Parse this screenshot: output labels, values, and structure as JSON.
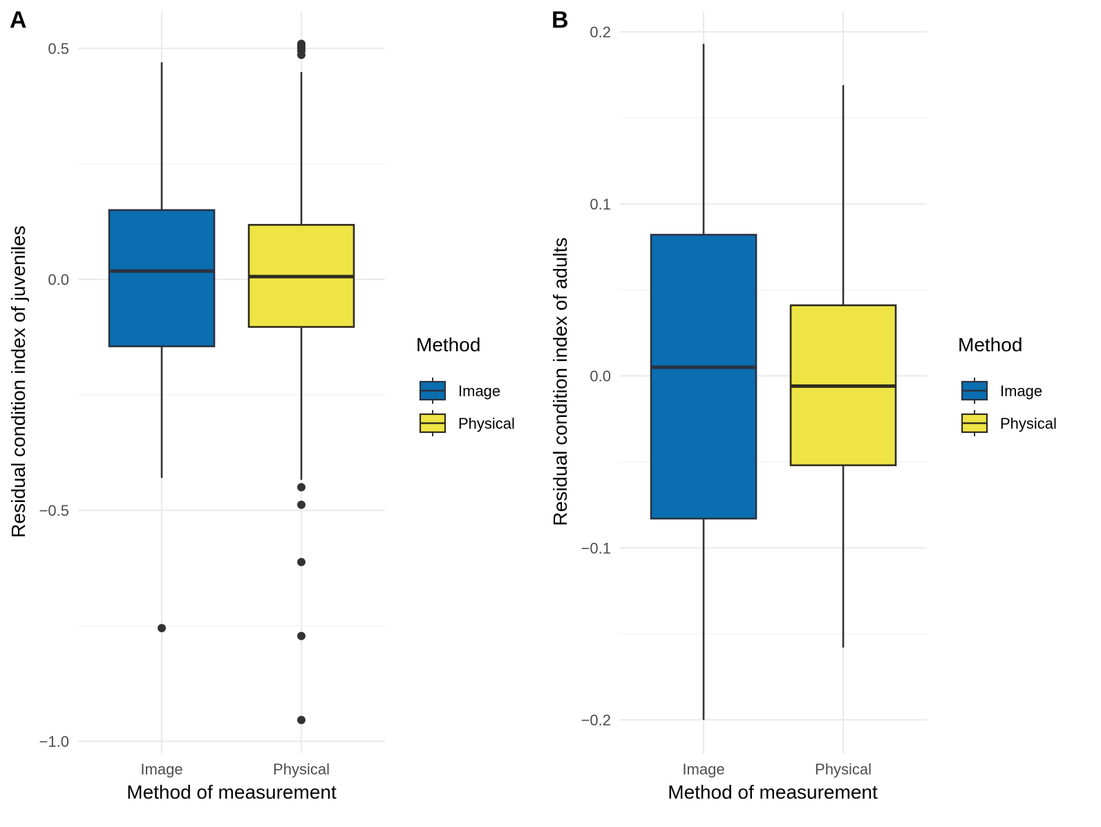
{
  "chart_data": [
    {
      "panel": "A",
      "type": "box",
      "title": "",
      "xlabel": "Method of measurement",
      "ylabel": "Residual condition index of juveniles",
      "categories": [
        "Image",
        "Physical"
      ],
      "ylim": [
        -1.03,
        0.56
      ],
      "yticks": [
        0.5,
        0.0,
        -0.5,
        -1.0
      ],
      "ytick_labels": [
        "0.5",
        "0.0",
        "−0.5",
        "−1.0"
      ],
      "yminor": [
        0.25,
        -0.25,
        -0.75
      ],
      "grid": true,
      "legend": {
        "title": "Method",
        "position": "right",
        "entries": [
          "Image",
          "Physical"
        ]
      },
      "series": [
        {
          "name": "Image",
          "color": "#0a6eb0",
          "stroke": "#2b3240",
          "whisker_low": -0.43,
          "q1": -0.145,
          "median": 0.018,
          "q3": 0.15,
          "whisker_high": 0.47,
          "outliers": [
            -0.755
          ]
        },
        {
          "name": "Physical",
          "color": "#efe445",
          "stroke": "#2e2c1c",
          "whisker_low": -0.434,
          "q1": -0.103,
          "median": 0.006,
          "q3": 0.118,
          "whisker_high": 0.449,
          "outliers": [
            0.51,
            0.505,
            0.5,
            0.495,
            0.486,
            -0.45,
            -0.488,
            -0.612,
            -0.772,
            -0.954
          ]
        }
      ]
    },
    {
      "panel": "B",
      "type": "box",
      "title": "",
      "xlabel": "Method of measurement",
      "ylabel": "Residual condition index of adults",
      "categories": [
        "Image",
        "Physical"
      ],
      "ylim": [
        -0.213,
        0.213
      ],
      "yticks": [
        0.2,
        0.1,
        0.0,
        -0.1,
        -0.2
      ],
      "ytick_labels": [
        "0.2",
        "0.1",
        "0.0",
        "−0.1",
        "−0.2"
      ],
      "yminor": [
        0.15,
        0.05,
        -0.05,
        -0.15
      ],
      "grid": true,
      "legend": {
        "title": "Method",
        "position": "right",
        "entries": [
          "Image",
          "Physical"
        ]
      },
      "series": [
        {
          "name": "Image",
          "color": "#0a6eb0",
          "stroke": "#2b3240",
          "whisker_low": -0.2,
          "q1": -0.083,
          "median": 0.005,
          "q3": 0.082,
          "whisker_high": 0.193,
          "outliers": []
        },
        {
          "name": "Physical",
          "color": "#efe445",
          "stroke": "#2e2c1c",
          "whisker_low": -0.158,
          "q1": -0.052,
          "median": -0.006,
          "q3": 0.041,
          "whisker_high": 0.169,
          "outliers": []
        }
      ]
    }
  ]
}
